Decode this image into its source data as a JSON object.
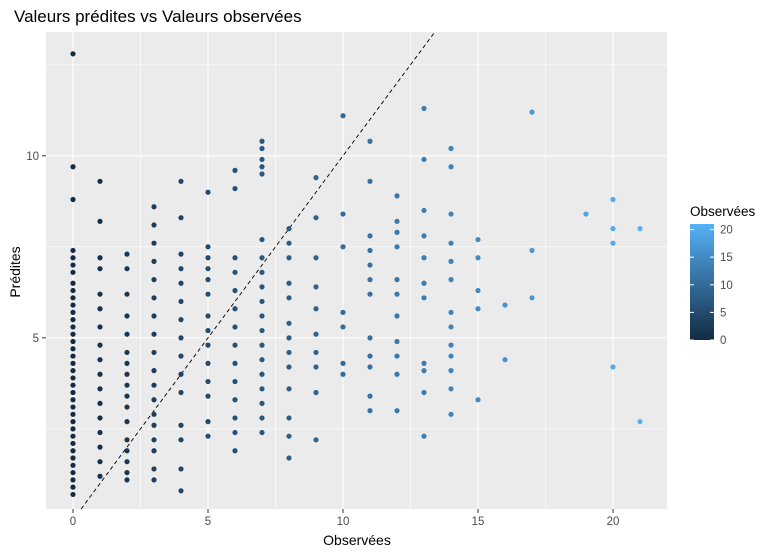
{
  "chart_data": {
    "type": "scatter",
    "title": "Valeurs prédites vs Valeurs observées",
    "xlabel": "Observées",
    "ylabel": "Prédites",
    "xlim": [
      -1,
      22
    ],
    "ylim": [
      0.3,
      13.4
    ],
    "x_ticks": [
      0,
      5,
      10,
      15,
      20
    ],
    "y_ticks": [
      5,
      10
    ],
    "reference_line": {
      "slope": 1,
      "intercept": 0,
      "style": "dashed",
      "color": "#000000"
    },
    "panel_background": "#ebebeb",
    "grid": true,
    "legend": {
      "title": "Observées",
      "position": "right",
      "scale": "continuous",
      "breaks": [
        0,
        5,
        10,
        15,
        20
      ],
      "low_color": "#132b43",
      "high_color": "#56b1f7",
      "range": [
        0,
        21
      ]
    },
    "points": [
      [
        0,
        12.8
      ],
      [
        0,
        9.7
      ],
      [
        0,
        8.8
      ],
      [
        0,
        7.4
      ],
      [
        0,
        7.2
      ],
      [
        0,
        7.0
      ],
      [
        0,
        6.8
      ],
      [
        0,
        6.5
      ],
      [
        0,
        6.3
      ],
      [
        0,
        6.1
      ],
      [
        0,
        5.9
      ],
      [
        0,
        5.7
      ],
      [
        0,
        5.5
      ],
      [
        0,
        5.3
      ],
      [
        0,
        5.1
      ],
      [
        0,
        4.9
      ],
      [
        0,
        4.7
      ],
      [
        0,
        4.5
      ],
      [
        0,
        4.3
      ],
      [
        0,
        4.1
      ],
      [
        0,
        3.9
      ],
      [
        0,
        3.7
      ],
      [
        0,
        3.5
      ],
      [
        0,
        3.3
      ],
      [
        0,
        3.1
      ],
      [
        0,
        2.9
      ],
      [
        0,
        2.7
      ],
      [
        0,
        2.5
      ],
      [
        0,
        2.3
      ],
      [
        0,
        2.1
      ],
      [
        0,
        1.9
      ],
      [
        0,
        1.7
      ],
      [
        0,
        1.5
      ],
      [
        0,
        1.3
      ],
      [
        0,
        1.1
      ],
      [
        0,
        0.9
      ],
      [
        0,
        0.7
      ],
      [
        1,
        9.3
      ],
      [
        1,
        8.2
      ],
      [
        1,
        7.2
      ],
      [
        1,
        6.9
      ],
      [
        1,
        6.2
      ],
      [
        1,
        5.8
      ],
      [
        1,
        5.3
      ],
      [
        1,
        4.8
      ],
      [
        1,
        4.4
      ],
      [
        1,
        4.0
      ],
      [
        1,
        3.6
      ],
      [
        1,
        3.2
      ],
      [
        1,
        2.8
      ],
      [
        1,
        2.4
      ],
      [
        1,
        2.0
      ],
      [
        1,
        1.6
      ],
      [
        1,
        1.2
      ],
      [
        2,
        7.3
      ],
      [
        2,
        6.9
      ],
      [
        2,
        6.2
      ],
      [
        2,
        5.6
      ],
      [
        2,
        5.1
      ],
      [
        2,
        4.6
      ],
      [
        2,
        4.3
      ],
      [
        2,
        4.0
      ],
      [
        2,
        3.7
      ],
      [
        2,
        3.4
      ],
      [
        2,
        3.1
      ],
      [
        2,
        2.7
      ],
      [
        2,
        2.2
      ],
      [
        2,
        1.9
      ],
      [
        2,
        1.6
      ],
      [
        2,
        1.3
      ],
      [
        2,
        1.1
      ],
      [
        3,
        8.6
      ],
      [
        3,
        8.1
      ],
      [
        3,
        7.6
      ],
      [
        3,
        7.1
      ],
      [
        3,
        6.6
      ],
      [
        3,
        6.1
      ],
      [
        3,
        5.6
      ],
      [
        3,
        5.1
      ],
      [
        3,
        4.6
      ],
      [
        3,
        4.1
      ],
      [
        3,
        3.7
      ],
      [
        3,
        3.3
      ],
      [
        3,
        2.9
      ],
      [
        3,
        2.6
      ],
      [
        3,
        2.2
      ],
      [
        3,
        1.9
      ],
      [
        3,
        1.4
      ],
      [
        3,
        1.1
      ],
      [
        4,
        9.3
      ],
      [
        4,
        8.3
      ],
      [
        4,
        7.3
      ],
      [
        4,
        6.9
      ],
      [
        4,
        6.5
      ],
      [
        4,
        6.0
      ],
      [
        4,
        5.5
      ],
      [
        4,
        5.0
      ],
      [
        4,
        4.5
      ],
      [
        4,
        4.0
      ],
      [
        4,
        3.5
      ],
      [
        4,
        2.6
      ],
      [
        4,
        2.2
      ],
      [
        4,
        1.4
      ],
      [
        4,
        0.8
      ],
      [
        5,
        9.0
      ],
      [
        5,
        7.5
      ],
      [
        5,
        7.2
      ],
      [
        5,
        6.9
      ],
      [
        5,
        6.6
      ],
      [
        5,
        6.2
      ],
      [
        5,
        5.6
      ],
      [
        5,
        5.2
      ],
      [
        5,
        4.8
      ],
      [
        5,
        4.3
      ],
      [
        5,
        3.8
      ],
      [
        5,
        3.4
      ],
      [
        5,
        2.7
      ],
      [
        5,
        2.3
      ],
      [
        6,
        9.6
      ],
      [
        6,
        9.1
      ],
      [
        6,
        7.2
      ],
      [
        6,
        6.8
      ],
      [
        6,
        6.3
      ],
      [
        6,
        5.8
      ],
      [
        6,
        5.3
      ],
      [
        6,
        4.8
      ],
      [
        6,
        4.3
      ],
      [
        6,
        3.8
      ],
      [
        6,
        3.3
      ],
      [
        6,
        2.8
      ],
      [
        6,
        2.4
      ],
      [
        6,
        1.9
      ],
      [
        7,
        10.4
      ],
      [
        7,
        10.2
      ],
      [
        7,
        9.9
      ],
      [
        7,
        9.7
      ],
      [
        7,
        9.5
      ],
      [
        7,
        7.7
      ],
      [
        7,
        7.2
      ],
      [
        7,
        6.8
      ],
      [
        7,
        6.4
      ],
      [
        7,
        6.0
      ],
      [
        7,
        5.6
      ],
      [
        7,
        5.2
      ],
      [
        7,
        4.8
      ],
      [
        7,
        4.4
      ],
      [
        7,
        4.0
      ],
      [
        7,
        3.6
      ],
      [
        7,
        3.2
      ],
      [
        7,
        2.8
      ],
      [
        7,
        2.4
      ],
      [
        8,
        8.0
      ],
      [
        8,
        7.6
      ],
      [
        8,
        7.2
      ],
      [
        8,
        6.5
      ],
      [
        8,
        6.1
      ],
      [
        8,
        5.4
      ],
      [
        8,
        5.0
      ],
      [
        8,
        4.6
      ],
      [
        8,
        4.2
      ],
      [
        8,
        3.6
      ],
      [
        8,
        2.8
      ],
      [
        8,
        2.3
      ],
      [
        8,
        1.7
      ],
      [
        9,
        9.4
      ],
      [
        9,
        8.3
      ],
      [
        9,
        7.2
      ],
      [
        9,
        6.4
      ],
      [
        9,
        5.8
      ],
      [
        9,
        5.1
      ],
      [
        9,
        4.6
      ],
      [
        9,
        4.2
      ],
      [
        9,
        3.5
      ],
      [
        9,
        2.2
      ],
      [
        10,
        11.1
      ],
      [
        10,
        8.4
      ],
      [
        10,
        7.5
      ],
      [
        10,
        5.7
      ],
      [
        10,
        5.3
      ],
      [
        10,
        4.3
      ],
      [
        10,
        4.0
      ],
      [
        11,
        10.4
      ],
      [
        11,
        9.3
      ],
      [
        11,
        7.8
      ],
      [
        11,
        7.4
      ],
      [
        11,
        7.0
      ],
      [
        11,
        6.6
      ],
      [
        11,
        6.2
      ],
      [
        11,
        5.0
      ],
      [
        11,
        4.5
      ],
      [
        11,
        4.2
      ],
      [
        11,
        3.4
      ],
      [
        11,
        3.0
      ],
      [
        12,
        8.9
      ],
      [
        12,
        8.2
      ],
      [
        12,
        7.9
      ],
      [
        12,
        7.5
      ],
      [
        12,
        6.6
      ],
      [
        12,
        6.2
      ],
      [
        12,
        5.6
      ],
      [
        12,
        4.9
      ],
      [
        12,
        4.5
      ],
      [
        12,
        4.0
      ],
      [
        12,
        3.0
      ],
      [
        13,
        11.3
      ],
      [
        13,
        9.9
      ],
      [
        13,
        8.5
      ],
      [
        13,
        7.8
      ],
      [
        13,
        7.2
      ],
      [
        13,
        6.5
      ],
      [
        13,
        6.1
      ],
      [
        13,
        4.3
      ],
      [
        13,
        4.1
      ],
      [
        13,
        3.5
      ],
      [
        13,
        2.3
      ],
      [
        14,
        10.2
      ],
      [
        14,
        9.7
      ],
      [
        14,
        8.4
      ],
      [
        14,
        7.6
      ],
      [
        14,
        7.1
      ],
      [
        14,
        6.6
      ],
      [
        14,
        5.7
      ],
      [
        14,
        5.3
      ],
      [
        14,
        4.8
      ],
      [
        14,
        4.5
      ],
      [
        14,
        4.1
      ],
      [
        14,
        3.6
      ],
      [
        14,
        2.9
      ],
      [
        15,
        7.7
      ],
      [
        15,
        7.2
      ],
      [
        15,
        6.3
      ],
      [
        15,
        5.8
      ],
      [
        15,
        3.3
      ],
      [
        16,
        5.9
      ],
      [
        16,
        4.4
      ],
      [
        17,
        11.2
      ],
      [
        17,
        7.4
      ],
      [
        17,
        6.1
      ],
      [
        19,
        8.4
      ],
      [
        20,
        8.8
      ],
      [
        20,
        8.0
      ],
      [
        20,
        7.6
      ],
      [
        20,
        4.2
      ],
      [
        21,
        8.0
      ],
      [
        21,
        2.7
      ]
    ]
  }
}
